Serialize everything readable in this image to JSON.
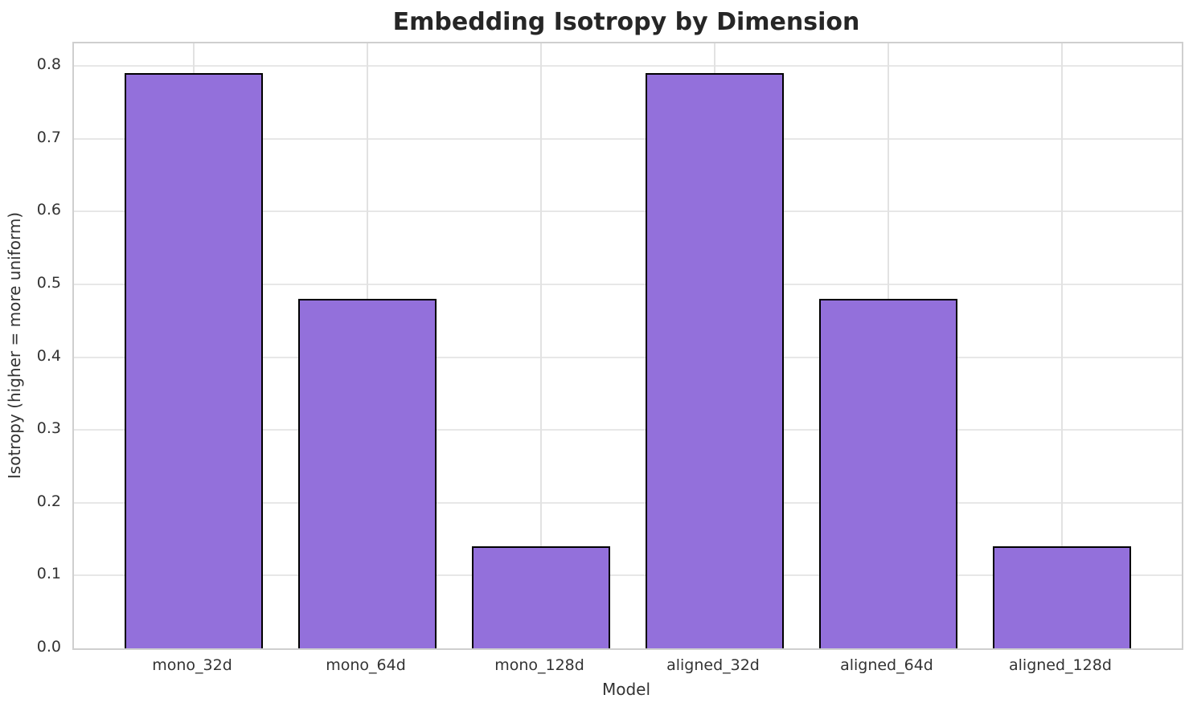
{
  "chart_data": {
    "type": "bar",
    "title": "Embedding Isotropy by Dimension",
    "xlabel": "Model",
    "ylabel": "Isotropy (higher = more uniform)",
    "categories": [
      "mono_32d",
      "mono_64d",
      "mono_128d",
      "aligned_32d",
      "aligned_64d",
      "aligned_128d"
    ],
    "values": [
      0.79,
      0.48,
      0.14,
      0.79,
      0.48,
      0.14
    ],
    "yticks": [
      0.0,
      0.1,
      0.2,
      0.3,
      0.4,
      0.5,
      0.6,
      0.7,
      0.8
    ],
    "ylim": [
      0,
      0.831
    ],
    "grid": true,
    "legend": "none",
    "bar_color": "#9370DB",
    "bar_edge_color": "#000000",
    "grid_color": "#e7e7e7",
    "background_color": "#ffffff"
  }
}
